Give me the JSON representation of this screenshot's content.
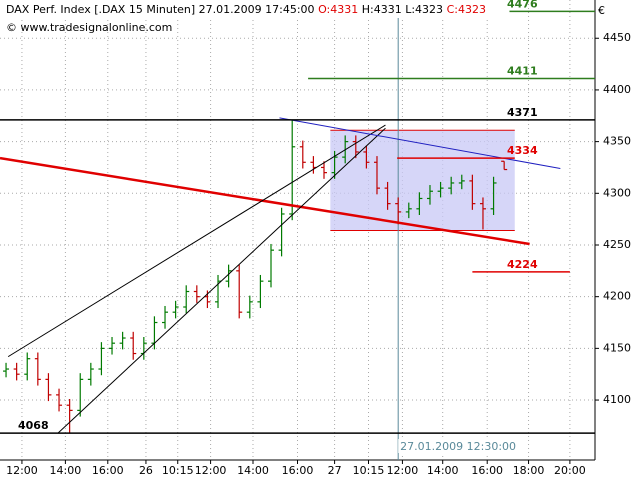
{
  "chart_data": {
    "type": "ohlc",
    "title": "DAX Perf. Index [.DAX  15 Minuten]",
    "datetime": "27.01.2009 17:45:00",
    "ohlc_labels": [
      {
        "text": "O:4331",
        "color": "#e00000"
      },
      {
        "text": "H:4331",
        "color": "#000000"
      },
      {
        "text": "L:4323",
        "color": "#000000"
      },
      {
        "text": "C:4323",
        "color": "#e00000"
      }
    ],
    "source": "© www.tradesignalonline.com",
    "currency": "€",
    "up_color": "#007a00",
    "down_color": "#c00000",
    "x": [
      0,
      1,
      2,
      3,
      4,
      5,
      6,
      7,
      8,
      9,
      10,
      11,
      12,
      13,
      14,
      15,
      16,
      17,
      18,
      19,
      20,
      21,
      22,
      23,
      24,
      25,
      26,
      27,
      28,
      29,
      30,
      31,
      32,
      33,
      34,
      35,
      36,
      37,
      38,
      39,
      40,
      41,
      42,
      43,
      44,
      45,
      46,
      47
    ],
    "open": [
      4128,
      4130,
      4125,
      4140,
      4120,
      4105,
      4095,
      4090,
      4120,
      4130,
      4150,
      4155,
      4160,
      4145,
      4155,
      4175,
      4185,
      4190,
      4205,
      4200,
      4195,
      4215,
      4225,
      4185,
      4195,
      4215,
      4245,
      4280,
      4345,
      4330,
      4325,
      4320,
      4335,
      4350,
      4340,
      4330,
      4305,
      4290,
      4282,
      4285,
      4295,
      4302,
      4305,
      4310,
      4312,
      4290,
      4285,
      4331
    ],
    "high": [
      4136,
      4136,
      4146,
      4146,
      4126,
      4111,
      4101,
      4126,
      4136,
      4156,
      4161,
      4166,
      4166,
      4161,
      4181,
      4191,
      4196,
      4211,
      4211,
      4206,
      4221,
      4231,
      4231,
      4201,
      4221,
      4251,
      4286,
      4371,
      4351,
      4336,
      4331,
      4341,
      4356,
      4356,
      4346,
      4336,
      4311,
      4296,
      4291,
      4301,
      4308,
      4311,
      4316,
      4318,
      4318,
      4296,
      4316,
      4331
    ],
    "low": [
      4122,
      4119,
      4119,
      4114,
      4099,
      4089,
      4068,
      4084,
      4114,
      4124,
      4144,
      4149,
      4139,
      4139,
      4149,
      4169,
      4179,
      4184,
      4194,
      4189,
      4189,
      4209,
      4179,
      4179,
      4189,
      4209,
      4239,
      4274,
      4324,
      4319,
      4314,
      4314,
      4329,
      4334,
      4324,
      4299,
      4284,
      4270,
      4276,
      4279,
      4289,
      4296,
      4299,
      4304,
      4284,
      4265,
      4279,
      4323
    ],
    "close": [
      4130,
      4125,
      4140,
      4120,
      4105,
      4095,
      4090,
      4120,
      4130,
      4150,
      4155,
      4160,
      4145,
      4155,
      4175,
      4185,
      4190,
      4205,
      4200,
      4195,
      4215,
      4225,
      4185,
      4195,
      4215,
      4245,
      4280,
      4345,
      4330,
      4325,
      4320,
      4335,
      4350,
      4340,
      4330,
      4305,
      4290,
      4282,
      4285,
      4295,
      4302,
      4305,
      4310,
      4312,
      4290,
      4285,
      4310,
      4323
    ],
    "xlim": [
      -0.57,
      55.57
    ],
    "xticks": [
      {
        "value": 1.5,
        "label": "12:00"
      },
      {
        "value": 5.6,
        "label": "14:00"
      },
      {
        "value": 9.6,
        "label": "16:00"
      },
      {
        "value": 13.2,
        "label": "26"
      },
      {
        "value": 16.2,
        "label": "10:15"
      },
      {
        "value": 19.3,
        "label": "12:00"
      },
      {
        "value": 23.3,
        "label": "14:00"
      },
      {
        "value": 27.5,
        "label": "16:00"
      },
      {
        "value": 31.0,
        "label": "27"
      },
      {
        "value": 34.2,
        "label": "10:15"
      },
      {
        "value": 37.4,
        "label": "12:00"
      },
      {
        "value": 41.2,
        "label": "14:00"
      },
      {
        "value": 45.4,
        "label": "16:00"
      },
      {
        "value": 49.3,
        "label": "18:00"
      },
      {
        "value": 53.2,
        "label": "20:00"
      }
    ],
    "ylim": [
      4042,
      4487
    ],
    "yticks": [
      4100,
      4150,
      4200,
      4250,
      4300,
      4350,
      4400,
      4450
    ],
    "grid": true,
    "zones": [
      {
        "x": [
          30.6,
          48
        ],
        "y": [
          4264,
          4361
        ],
        "color": "#c8c8f5",
        "border": "#e00000"
      }
    ],
    "levels": [
      {
        "value": 4476,
        "x": [
          47.5,
          55.57
        ],
        "color": "#2e7d1e"
      },
      {
        "value": 4411,
        "x": [
          28.5,
          55.57
        ],
        "color": "#2e7d1e"
      },
      {
        "value": 4371,
        "x": [
          -0.57,
          55.57
        ],
        "color": "#000000"
      },
      {
        "value": 4334,
        "x": [
          36.9,
          48
        ],
        "color": "#e00000"
      },
      {
        "value": 4224,
        "x": [
          44,
          53.2
        ],
        "color": "#e00000"
      },
      {
        "value": 4068,
        "x": [
          -0.57,
          55.57
        ],
        "color": "#000000"
      }
    ],
    "trendlines": [
      {
        "x": [
          -0.57,
          49.4
        ],
        "y": [
          4334,
          4251
        ],
        "color": "#e00000",
        "width": 2.5
      },
      {
        "x": [
          4.9,
          35.8
        ],
        "y": [
          4068,
          4363
        ],
        "color": "#000000",
        "width": 1
      },
      {
        "x": [
          0.2,
          35.8
        ],
        "y": [
          4142,
          4366
        ],
        "color": "#000000",
        "width": 1
      },
      {
        "x": [
          25.8,
          52.3
        ],
        "y": [
          4373,
          4324
        ],
        "color": "#2020c0",
        "width": 1
      }
    ],
    "cursor": {
      "x": 37,
      "label": "27.01.2009 12:30:00",
      "color": "#5a8a9a"
    }
  }
}
